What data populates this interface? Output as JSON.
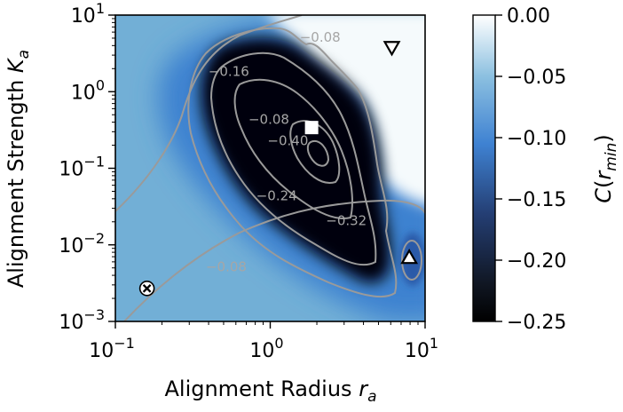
{
  "chart_data": {
    "type": "heatmap",
    "x_scale": "log",
    "y_scale": "log",
    "xlabel": "Alignment Radius",
    "xlabel_var": "r",
    "xlabel_sub": "a",
    "ylabel": "Alignment Strength",
    "ylabel_var": "K",
    "ylabel_sub": "a",
    "xlim": [
      0.1,
      10
    ],
    "ylim": [
      0.001,
      10
    ],
    "x_ticks": [
      {
        "value": 0.1,
        "base": "10",
        "exp": "−1"
      },
      {
        "value": 1,
        "base": "10",
        "exp": "0"
      },
      {
        "value": 10,
        "base": "10",
        "exp": "1"
      }
    ],
    "y_ticks": [
      {
        "value": 0.001,
        "base": "10",
        "exp": "−3"
      },
      {
        "value": 0.01,
        "base": "10",
        "exp": "−2"
      },
      {
        "value": 0.1,
        "base": "10",
        "exp": "−1"
      },
      {
        "value": 1,
        "base": "10",
        "exp": "0"
      },
      {
        "value": 10,
        "base": "10",
        "exp": "1"
      }
    ],
    "colorbar": {
      "label_var": "C",
      "label_arg": "r",
      "label_sub": "min",
      "range": [
        -0.25,
        0.0
      ],
      "ticks": [
        {
          "value": 0.0,
          "label": "0.00"
        },
        {
          "value": -0.05,
          "label": "−0.05"
        },
        {
          "value": -0.1,
          "label": "−0.10"
        },
        {
          "value": -0.15,
          "label": "−0.15"
        },
        {
          "value": -0.2,
          "label": "−0.20"
        },
        {
          "value": -0.25,
          "label": "−0.25"
        }
      ],
      "colors": [
        "#000000",
        "#101622",
        "#2f5fb6",
        "#4a8fd1",
        "#8cc0e0",
        "#ffffff"
      ]
    },
    "contour_labels": [
      {
        "text": "−0.08",
        "x": 2.1,
        "y": 4.5
      },
      {
        "text": "−0.16",
        "x": 0.54,
        "y": 1.6
      },
      {
        "text": "−0.08",
        "x": 0.98,
        "y": 0.38
      },
      {
        "text": "−0.08",
        "x": 0.52,
        "y": 0.0045
      },
      {
        "text": "−0.40",
        "x": 1.3,
        "y": 0.2
      },
      {
        "text": "−0.24",
        "x": 1.1,
        "y": 0.038
      },
      {
        "text": "−0.32",
        "x": 3.1,
        "y": 0.018
      }
    ],
    "markers": [
      {
        "shape": "triangle-down",
        "x": 6.1,
        "y": 3.8
      },
      {
        "shape": "square",
        "x": 1.85,
        "y": 0.34
      },
      {
        "shape": "triangle-up",
        "x": 7.9,
        "y": 0.0068
      },
      {
        "shape": "x-circle",
        "x": 0.16,
        "y": 0.0027
      }
    ]
  }
}
